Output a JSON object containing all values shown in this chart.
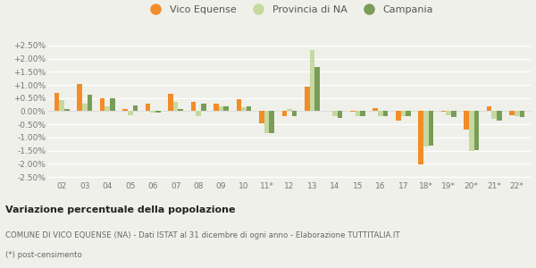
{
  "categories": [
    "02",
    "03",
    "04",
    "05",
    "06",
    "07",
    "08",
    "09",
    "10",
    "11*",
    "12",
    "13",
    "14",
    "15",
    "16",
    "17",
    "18*",
    "19*",
    "20*",
    "21*",
    "22*"
  ],
  "vico_equense": [
    0.7,
    1.05,
    0.5,
    0.08,
    0.3,
    0.65,
    0.35,
    0.28,
    0.45,
    -0.45,
    -0.18,
    0.95,
    0.02,
    -0.02,
    0.12,
    -0.35,
    -2.02,
    -0.02,
    -0.7,
    0.18,
    -0.15
  ],
  "provincia_na": [
    0.42,
    0.28,
    0.2,
    -0.15,
    -0.05,
    0.35,
    -0.2,
    0.18,
    0.15,
    -0.82,
    0.08,
    2.32,
    -0.2,
    -0.18,
    -0.18,
    -0.18,
    -1.35,
    -0.15,
    -1.52,
    -0.3,
    -0.18
  ],
  "campania": [
    0.1,
    0.62,
    0.48,
    0.22,
    -0.05,
    0.1,
    0.3,
    0.2,
    0.18,
    -0.85,
    -0.2,
    1.68,
    -0.25,
    -0.2,
    -0.18,
    -0.2,
    -1.32,
    -0.22,
    -1.48,
    -0.35,
    -0.22
  ],
  "color_vico": "#f28c28",
  "color_provincia": "#c5d9a0",
  "color_campania": "#7a9c59",
  "title": "Variazione percentuale della popolazione",
  "subtitle1": "COMUNE DI VICO EQUENSE (NA) - Dati ISTAT al 31 dicembre di ogni anno - Elaborazione TUTTITALIA.IT",
  "subtitle2": "(*) post-censimento",
  "bg_color": "#f0f0eb",
  "ylim": [
    -2.6,
    2.7
  ],
  "yticks": [
    -2.5,
    -2.0,
    -1.5,
    -1.0,
    -0.5,
    0.0,
    0.5,
    1.0,
    1.5,
    2.0,
    2.5
  ],
  "ytick_labels": [
    "-2.50%",
    "-2.00%",
    "-1.50%",
    "-1.00%",
    "-0.50%",
    "0.00%",
    "+0.50%",
    "+1.00%",
    "+1.50%",
    "+2.00%",
    "+2.50%"
  ],
  "legend_labels": [
    "Vico Equense",
    "Provincia di NA",
    "Campania"
  ]
}
